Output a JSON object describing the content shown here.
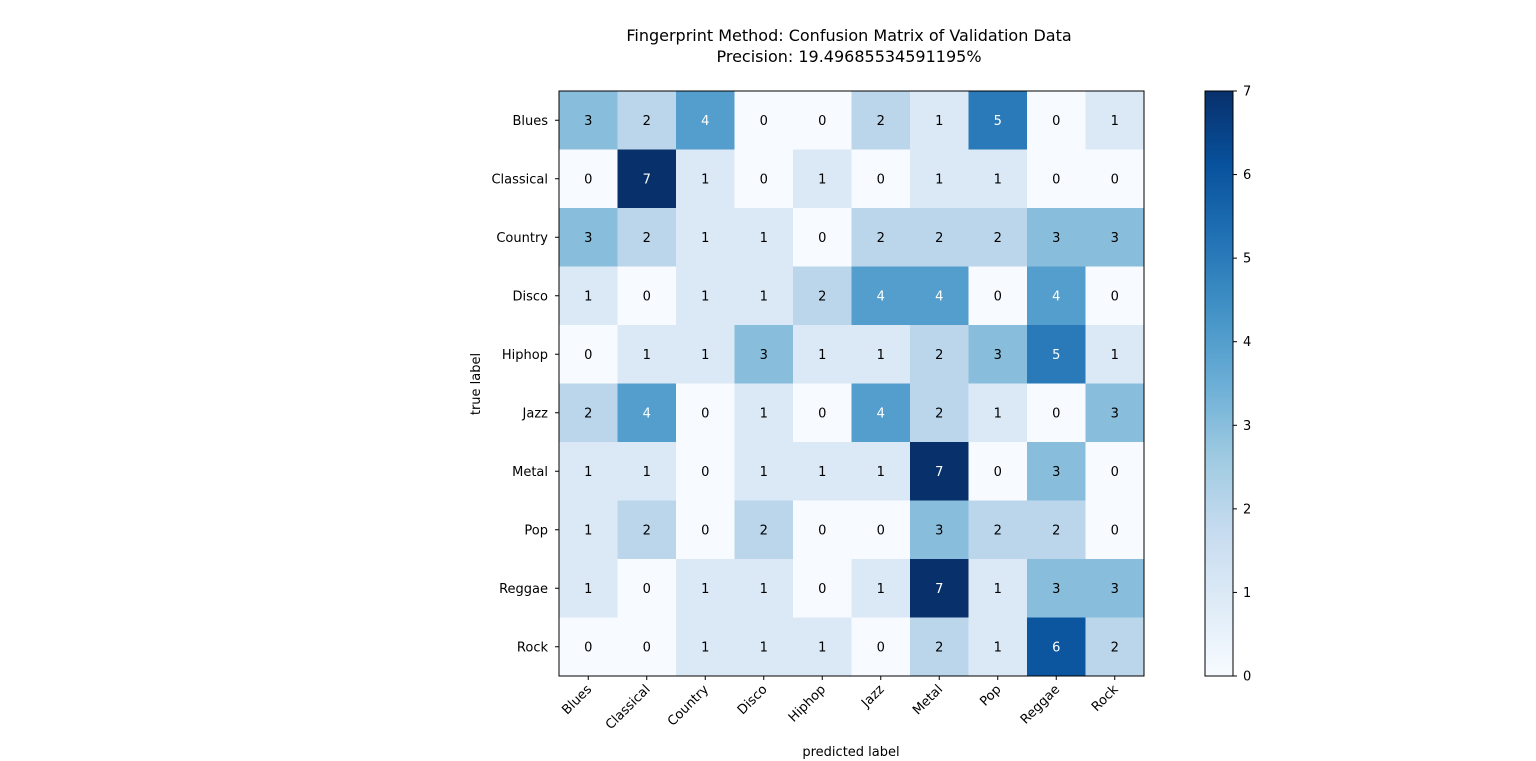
{
  "chart_data": {
    "type": "heatmap",
    "title": "Fingerprint Method: Confusion Matrix of Validation Data",
    "subtitle": "Precision: 19.49685534591195%",
    "xlabel": "predicted label",
    "ylabel": "true label",
    "x_categories": [
      "Blues",
      "Classical",
      "Country",
      "Disco",
      "Hiphop",
      "Jazz",
      "Metal",
      "Pop",
      "Reggae",
      "Rock"
    ],
    "y_categories": [
      "Blues",
      "Classical",
      "Country",
      "Disco",
      "Hiphop",
      "Jazz",
      "Metal",
      "Pop",
      "Reggae",
      "Rock"
    ],
    "matrix": [
      [
        3,
        2,
        4,
        0,
        0,
        2,
        1,
        5,
        0,
        1
      ],
      [
        0,
        7,
        1,
        0,
        1,
        0,
        1,
        1,
        0,
        0
      ],
      [
        3,
        2,
        1,
        1,
        0,
        2,
        2,
        2,
        3,
        3
      ],
      [
        1,
        0,
        1,
        1,
        2,
        4,
        4,
        0,
        4,
        0
      ],
      [
        0,
        1,
        1,
        3,
        1,
        1,
        2,
        3,
        5,
        1
      ],
      [
        2,
        4,
        0,
        1,
        0,
        4,
        2,
        1,
        0,
        3
      ],
      [
        1,
        1,
        0,
        1,
        1,
        1,
        7,
        0,
        3,
        0
      ],
      [
        1,
        2,
        0,
        2,
        0,
        0,
        3,
        2,
        2,
        0
      ],
      [
        1,
        0,
        1,
        1,
        0,
        1,
        7,
        1,
        3,
        3
      ],
      [
        0,
        0,
        1,
        1,
        1,
        0,
        2,
        1,
        6,
        2
      ]
    ],
    "colormap": "Blues",
    "value_range": [
      0,
      7
    ],
    "colorbar_ticks": [
      0,
      1,
      2,
      3,
      4,
      5,
      6,
      7
    ],
    "grid": false,
    "legend": "colorbar-right"
  }
}
